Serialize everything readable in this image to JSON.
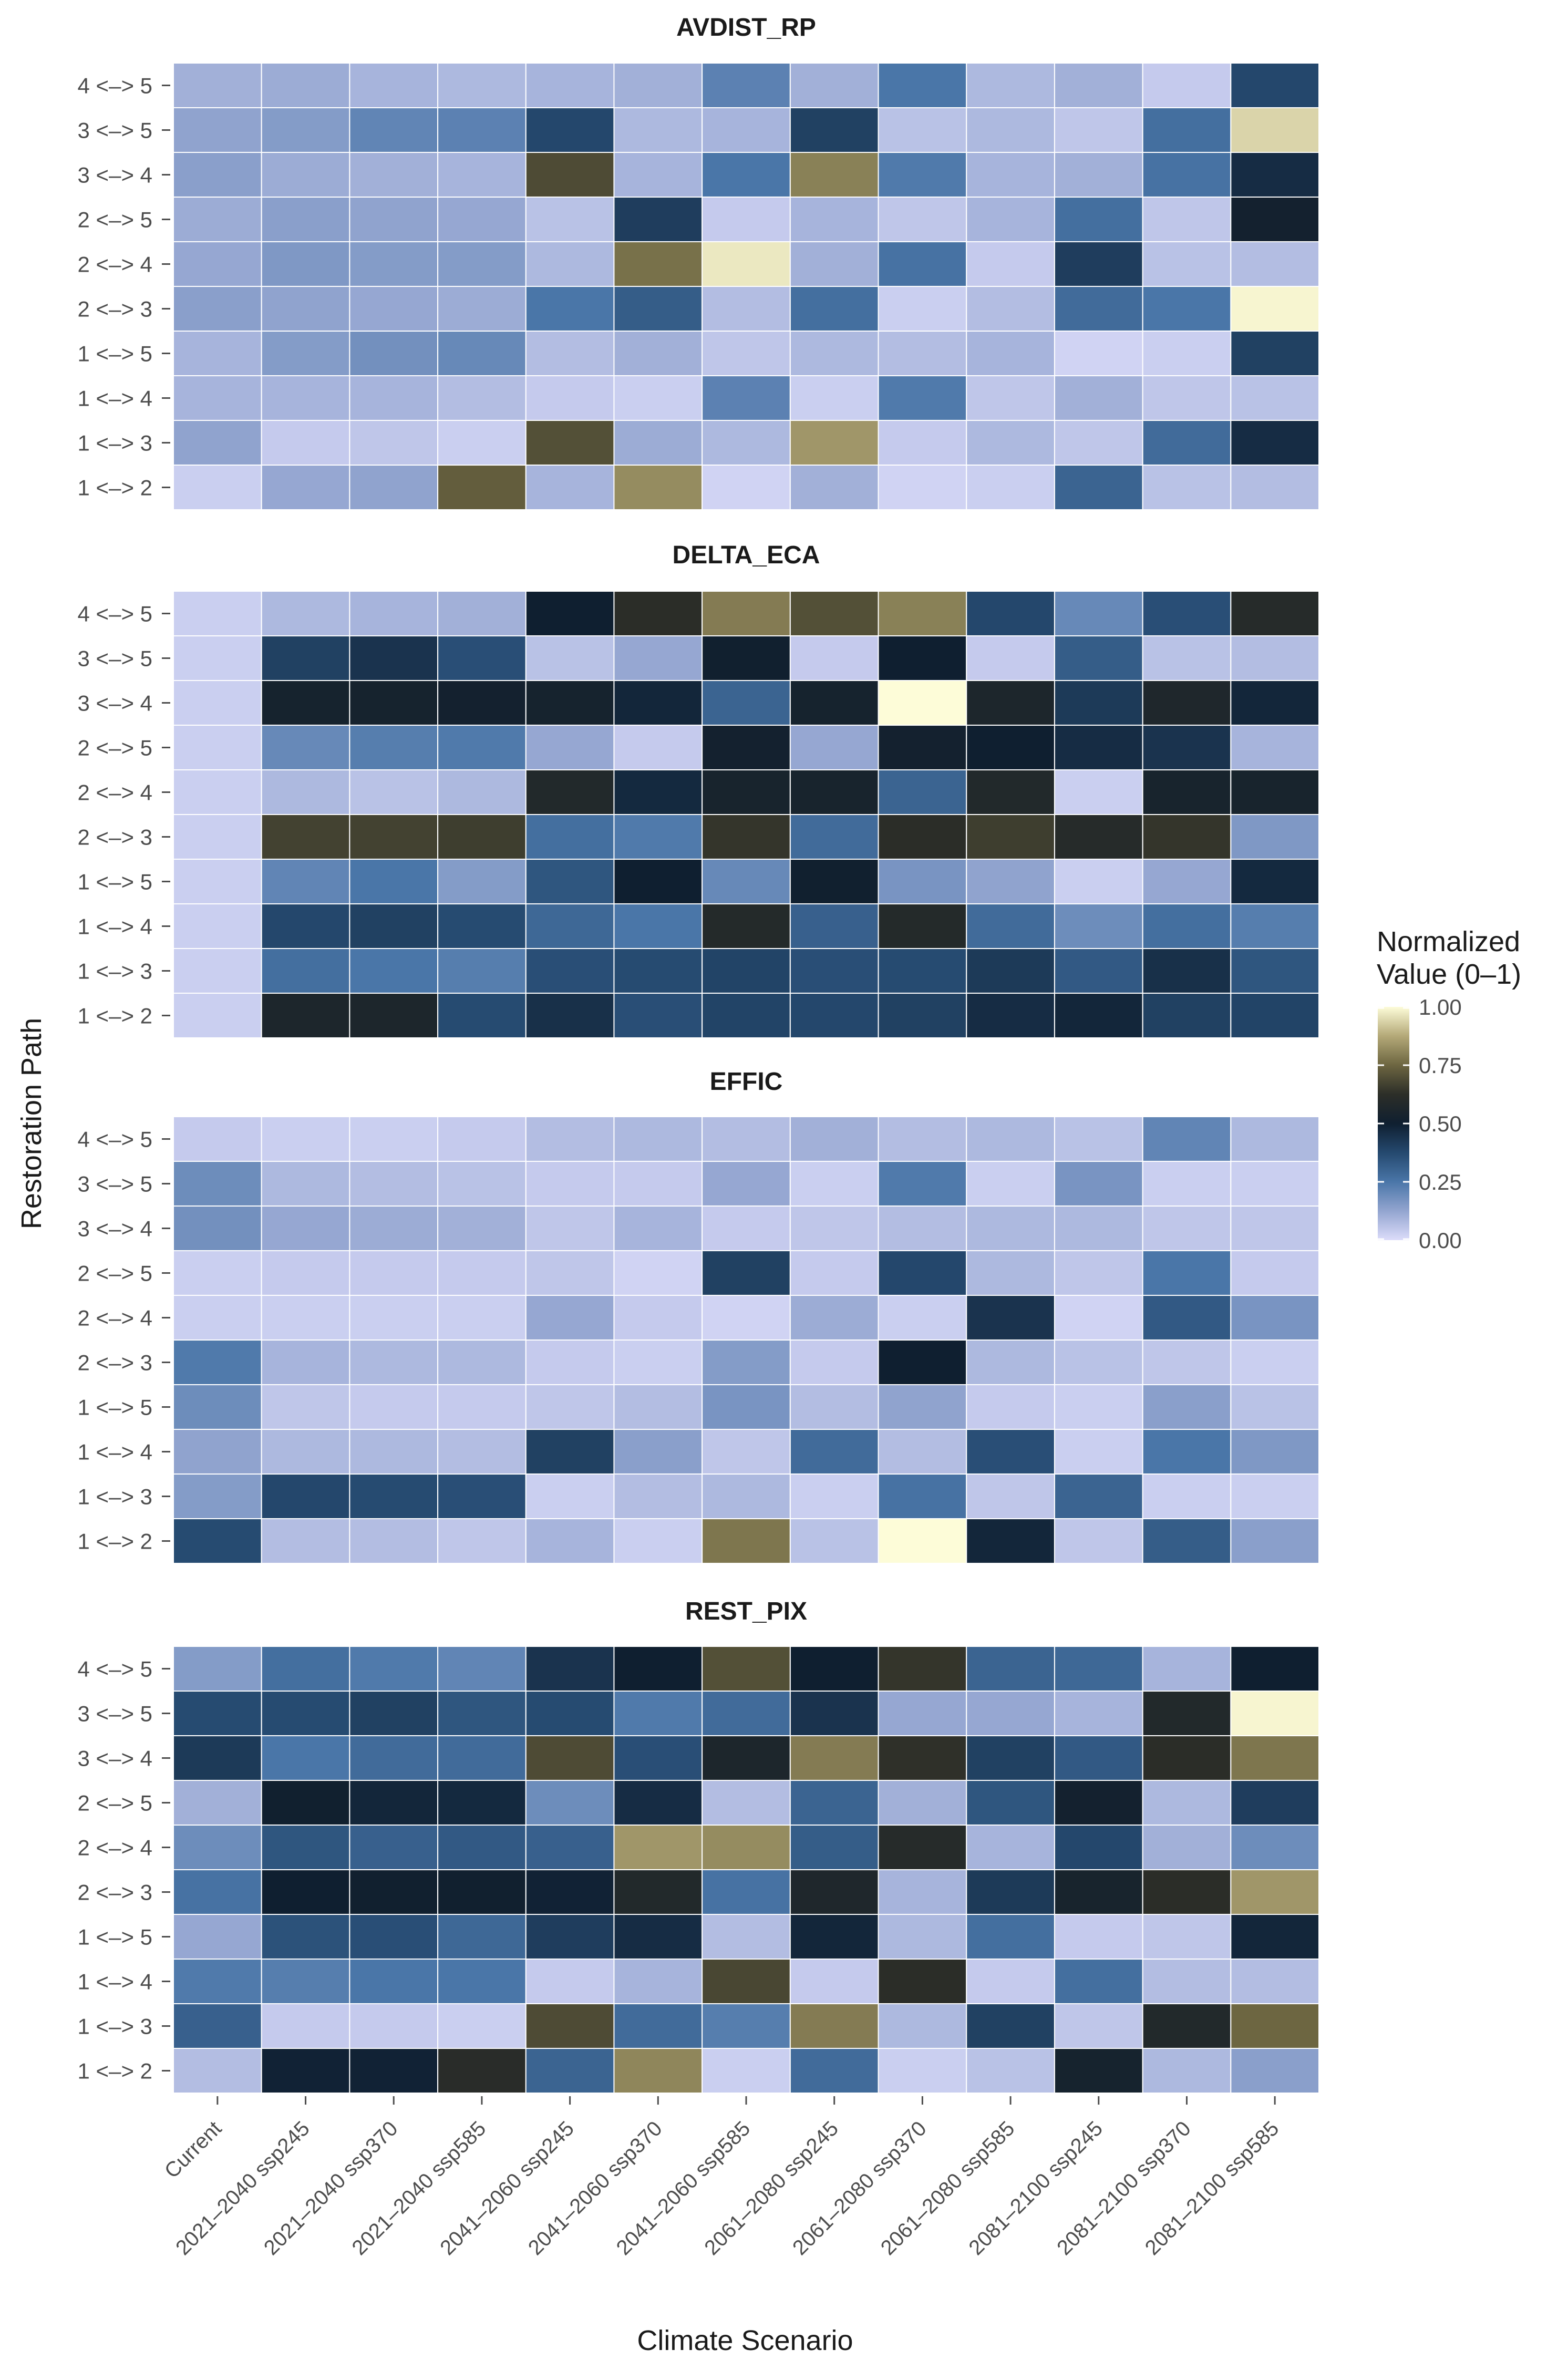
{
  "chart_data": {
    "type": "heatmap",
    "xlabel": "Climate Scenario",
    "ylabel": "Restoration Path",
    "x": [
      "Current",
      "2021–2040 ssp245",
      "2021–2040 ssp370",
      "2021–2040 ssp585",
      "2041–2060 ssp245",
      "2041–2060 ssp370",
      "2041–2060 ssp585",
      "2061–2080 ssp245",
      "2061–2080 ssp370",
      "2061–2080 ssp585",
      "2081–2100 ssp245",
      "2081–2100 ssp370",
      "2081–2100 ssp585"
    ],
    "y": [
      "4 <–> 5",
      "3 <–> 5",
      "3 <–> 4",
      "2 <–> 5",
      "2 <–> 4",
      "2 <–> 3",
      "1 <–> 5",
      "1 <–> 4",
      "1 <–> 3",
      "1 <–> 2"
    ],
    "legend": {
      "title_line1": "Normalized",
      "title_line2": "Value (0–1)",
      "ticks": [
        "1.00",
        "0.75",
        "0.50",
        "0.25",
        "0.00"
      ],
      "range": [
        0,
        1
      ],
      "placement": "right"
    },
    "colors": {
      "stops": [
        "#dcdcfa",
        "#93a5d0",
        "#4a76a8",
        "#25496f",
        "#0f1f30",
        "#2c2e28",
        "#6d6641",
        "#b4a978",
        "#fdfcd8"
      ]
    },
    "panels": [
      {
        "title": "AVDIST_RP",
        "values": [
          [
            0.1,
            0.11,
            0.09,
            0.08,
            0.09,
            0.1,
            0.22,
            0.1,
            0.25,
            0.08,
            0.1,
            0.04,
            0.38
          ],
          [
            0.13,
            0.15,
            0.21,
            0.22,
            0.38,
            0.08,
            0.09,
            0.4,
            0.06,
            0.08,
            0.05,
            0.27,
            0.94
          ],
          [
            0.14,
            0.11,
            0.1,
            0.09,
            0.69,
            0.09,
            0.25,
            0.8,
            0.24,
            0.09,
            0.1,
            0.26,
            0.46
          ],
          [
            0.11,
            0.14,
            0.13,
            0.12,
            0.06,
            0.41,
            0.04,
            0.09,
            0.05,
            0.09,
            0.27,
            0.05,
            0.52
          ],
          [
            0.12,
            0.16,
            0.15,
            0.15,
            0.08,
            0.77,
            0.97,
            0.1,
            0.26,
            0.04,
            0.41,
            0.06,
            0.07
          ],
          [
            0.14,
            0.13,
            0.12,
            0.11,
            0.25,
            0.32,
            0.07,
            0.27,
            0.03,
            0.07,
            0.28,
            0.25,
            0.99
          ],
          [
            0.09,
            0.15,
            0.18,
            0.2,
            0.07,
            0.1,
            0.05,
            0.08,
            0.07,
            0.09,
            0.02,
            0.03,
            0.4
          ],
          [
            0.09,
            0.09,
            0.09,
            0.07,
            0.04,
            0.03,
            0.22,
            0.03,
            0.24,
            0.05,
            0.1,
            0.05,
            0.06
          ],
          [
            0.13,
            0.04,
            0.05,
            0.03,
            0.7,
            0.11,
            0.08,
            0.84,
            0.04,
            0.08,
            0.05,
            0.28,
            0.46
          ],
          [
            0.03,
            0.12,
            0.13,
            0.73,
            0.09,
            0.82,
            0.02,
            0.1,
            0.02,
            0.03,
            0.3,
            0.06,
            0.07
          ]
        ]
      },
      {
        "title": "DELTA_ECA",
        "values": [
          [
            0.03,
            0.08,
            0.09,
            0.1,
            0.5,
            0.62,
            0.79,
            0.7,
            0.8,
            0.38,
            0.2,
            0.36,
            0.6
          ],
          [
            0.03,
            0.4,
            0.44,
            0.36,
            0.06,
            0.12,
            0.51,
            0.04,
            0.5,
            0.04,
            0.32,
            0.06,
            0.07
          ],
          [
            0.03,
            0.53,
            0.53,
            0.52,
            0.53,
            0.48,
            0.3,
            0.53,
            1.0,
            0.56,
            0.42,
            0.57,
            0.48
          ],
          [
            0.03,
            0.2,
            0.23,
            0.24,
            0.12,
            0.04,
            0.52,
            0.12,
            0.52,
            0.5,
            0.46,
            0.44,
            0.09
          ],
          [
            0.03,
            0.08,
            0.06,
            0.08,
            0.58,
            0.47,
            0.54,
            0.54,
            0.3,
            0.58,
            0.03,
            0.54,
            0.54
          ],
          [
            0.03,
            0.67,
            0.67,
            0.66,
            0.27,
            0.24,
            0.64,
            0.28,
            0.62,
            0.66,
            0.6,
            0.64,
            0.16
          ],
          [
            0.03,
            0.21,
            0.25,
            0.15,
            0.34,
            0.5,
            0.2,
            0.51,
            0.17,
            0.13,
            0.03,
            0.12,
            0.47
          ],
          [
            0.03,
            0.38,
            0.4,
            0.37,
            0.29,
            0.25,
            0.59,
            0.31,
            0.59,
            0.28,
            0.19,
            0.27,
            0.23
          ],
          [
            0.03,
            0.27,
            0.25,
            0.23,
            0.36,
            0.37,
            0.39,
            0.36,
            0.37,
            0.42,
            0.33,
            0.45,
            0.34
          ],
          [
            0.03,
            0.56,
            0.56,
            0.37,
            0.45,
            0.36,
            0.39,
            0.38,
            0.4,
            0.46,
            0.48,
            0.4,
            0.39
          ]
        ]
      },
      {
        "title": "EFFIC",
        "values": [
          [
            0.04,
            0.03,
            0.03,
            0.04,
            0.07,
            0.08,
            0.07,
            0.1,
            0.07,
            0.08,
            0.06,
            0.21,
            0.08
          ],
          [
            0.19,
            0.08,
            0.07,
            0.06,
            0.04,
            0.04,
            0.12,
            0.03,
            0.24,
            0.03,
            0.17,
            0.03,
            0.03
          ],
          [
            0.18,
            0.12,
            0.11,
            0.1,
            0.05,
            0.09,
            0.04,
            0.05,
            0.07,
            0.08,
            0.08,
            0.05,
            0.05
          ],
          [
            0.03,
            0.04,
            0.04,
            0.04,
            0.05,
            0.02,
            0.4,
            0.04,
            0.38,
            0.08,
            0.05,
            0.25,
            0.04
          ],
          [
            0.03,
            0.03,
            0.03,
            0.03,
            0.12,
            0.04,
            0.02,
            0.11,
            0.03,
            0.44,
            0.02,
            0.33,
            0.17
          ],
          [
            0.24,
            0.09,
            0.08,
            0.08,
            0.04,
            0.03,
            0.15,
            0.04,
            0.5,
            0.08,
            0.06,
            0.05,
            0.03
          ],
          [
            0.19,
            0.05,
            0.04,
            0.04,
            0.05,
            0.07,
            0.17,
            0.07,
            0.13,
            0.04,
            0.03,
            0.14,
            0.06
          ],
          [
            0.13,
            0.08,
            0.08,
            0.07,
            0.4,
            0.14,
            0.05,
            0.28,
            0.07,
            0.36,
            0.03,
            0.25,
            0.16
          ],
          [
            0.15,
            0.38,
            0.37,
            0.36,
            0.03,
            0.07,
            0.08,
            0.03,
            0.26,
            0.05,
            0.3,
            0.03,
            0.03
          ],
          [
            0.37,
            0.07,
            0.07,
            0.05,
            0.09,
            0.03,
            0.78,
            0.06,
            1.0,
            0.48,
            0.05,
            0.32,
            0.14
          ]
        ]
      },
      {
        "title": "REST_PIX",
        "values": [
          [
            0.15,
            0.27,
            0.24,
            0.21,
            0.44,
            0.5,
            0.7,
            0.5,
            0.64,
            0.3,
            0.29,
            0.09,
            0.5
          ],
          [
            0.37,
            0.37,
            0.4,
            0.34,
            0.37,
            0.24,
            0.28,
            0.44,
            0.12,
            0.12,
            0.09,
            0.58,
            0.99
          ],
          [
            0.42,
            0.25,
            0.28,
            0.28,
            0.69,
            0.36,
            0.56,
            0.79,
            0.63,
            0.4,
            0.33,
            0.62,
            0.78
          ],
          [
            0.1,
            0.51,
            0.48,
            0.47,
            0.19,
            0.46,
            0.07,
            0.3,
            0.1,
            0.34,
            0.52,
            0.08,
            0.41
          ],
          [
            0.19,
            0.34,
            0.31,
            0.33,
            0.31,
            0.84,
            0.82,
            0.32,
            0.6,
            0.09,
            0.38,
            0.1,
            0.19
          ],
          [
            0.26,
            0.5,
            0.51,
            0.51,
            0.49,
            0.58,
            0.26,
            0.57,
            0.09,
            0.42,
            0.54,
            0.62,
            0.84
          ],
          [
            0.12,
            0.35,
            0.36,
            0.29,
            0.41,
            0.46,
            0.07,
            0.48,
            0.08,
            0.27,
            0.04,
            0.05,
            0.48
          ],
          [
            0.24,
            0.23,
            0.25,
            0.25,
            0.04,
            0.09,
            0.68,
            0.04,
            0.62,
            0.04,
            0.27,
            0.07,
            0.07
          ],
          [
            0.31,
            0.04,
            0.04,
            0.03,
            0.69,
            0.28,
            0.23,
            0.79,
            0.08,
            0.4,
            0.05,
            0.58,
            0.75
          ],
          [
            0.07,
            0.49,
            0.49,
            0.61,
            0.3,
            0.81,
            0.03,
            0.28,
            0.03,
            0.06,
            0.53,
            0.08,
            0.14
          ]
        ]
      }
    ]
  }
}
